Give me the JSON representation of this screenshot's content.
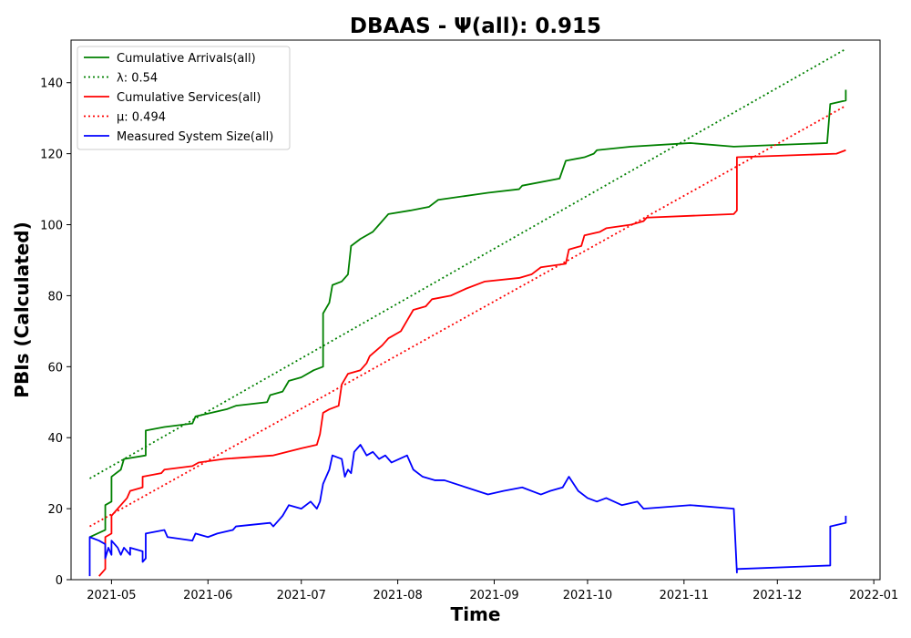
{
  "chart_data": {
    "type": "line",
    "title": "DBAAS -  Ψ(all): 0.915",
    "xlabel": "Time",
    "ylabel": "PBIs (Calculated)",
    "x_tick_labels": [
      "2021-05",
      "2021-06",
      "2021-07",
      "2021-08",
      "2021-09",
      "2021-10",
      "2021-11",
      "2021-12",
      "2022-01"
    ],
    "x_ticks": [
      "2021-05-01",
      "2021-06-01",
      "2021-07-01",
      "2021-08-01",
      "2021-09-01",
      "2021-10-01",
      "2021-11-01",
      "2021-12-01",
      "2022-01-01"
    ],
    "xlim": [
      "2021-04-18",
      "2022-01-03"
    ],
    "y_ticks": [
      0,
      20,
      40,
      60,
      80,
      100,
      120,
      140
    ],
    "ylim": [
      0,
      152
    ],
    "grid": false,
    "legend_position": "top-left",
    "series": [
      {
        "name": "Cumulative Arrivals(all)",
        "color": "#008000",
        "style": "solid",
        "points": [
          [
            "2021-04-24",
            12
          ],
          [
            "2021-04-29",
            14
          ],
          [
            "2021-04-29",
            21
          ],
          [
            "2021-05-01",
            22
          ],
          [
            "2021-05-01",
            29
          ],
          [
            "2021-05-04",
            31
          ],
          [
            "2021-05-05",
            34
          ],
          [
            "2021-05-12",
            35
          ],
          [
            "2021-05-12",
            42
          ],
          [
            "2021-05-18",
            43
          ],
          [
            "2021-05-27",
            44
          ],
          [
            "2021-05-28",
            46
          ],
          [
            "2021-06-07",
            48
          ],
          [
            "2021-06-10",
            49
          ],
          [
            "2021-06-20",
            50
          ],
          [
            "2021-06-21",
            52
          ],
          [
            "2021-06-25",
            53
          ],
          [
            "2021-06-27",
            56
          ],
          [
            "2021-07-01",
            57
          ],
          [
            "2021-07-05",
            59
          ],
          [
            "2021-07-08",
            60
          ],
          [
            "2021-07-08",
            75
          ],
          [
            "2021-07-10",
            78
          ],
          [
            "2021-07-11",
            83
          ],
          [
            "2021-07-14",
            84
          ],
          [
            "2021-07-16",
            86
          ],
          [
            "2021-07-17",
            94
          ],
          [
            "2021-07-20",
            96
          ],
          [
            "2021-07-24",
            98
          ],
          [
            "2021-07-26",
            100
          ],
          [
            "2021-07-29",
            103
          ],
          [
            "2021-08-05",
            104
          ],
          [
            "2021-08-11",
            105
          ],
          [
            "2021-08-14",
            107
          ],
          [
            "2021-08-30",
            109
          ],
          [
            "2021-09-09",
            110
          ],
          [
            "2021-09-10",
            111
          ],
          [
            "2021-09-22",
            113
          ],
          [
            "2021-09-24",
            118
          ],
          [
            "2021-09-30",
            119
          ],
          [
            "2021-10-03",
            120
          ],
          [
            "2021-10-04",
            121
          ],
          [
            "2021-10-15",
            122
          ],
          [
            "2021-11-03",
            123
          ],
          [
            "2021-11-17",
            122
          ],
          [
            "2021-12-02",
            122.5
          ],
          [
            "2021-12-17",
            123
          ],
          [
            "2021-12-18",
            134
          ],
          [
            "2021-12-23",
            135
          ],
          [
            "2021-12-23",
            138
          ]
        ]
      },
      {
        "name": "λ: 0.54",
        "color": "#008000",
        "style": "dotted",
        "points": [
          [
            "2021-04-24",
            28.5
          ],
          [
            "2021-12-23",
            149.5
          ]
        ]
      },
      {
        "name": "Cumulative Services(all)",
        "color": "#ff0000",
        "style": "solid",
        "points": [
          [
            "2021-04-27",
            1
          ],
          [
            "2021-04-28",
            2
          ],
          [
            "2021-04-29",
            3
          ],
          [
            "2021-04-29",
            12
          ],
          [
            "2021-05-01",
            13
          ],
          [
            "2021-05-01",
            18
          ],
          [
            "2021-05-04",
            21
          ],
          [
            "2021-05-06",
            23
          ],
          [
            "2021-05-07",
            25
          ],
          [
            "2021-05-11",
            26
          ],
          [
            "2021-05-11",
            29
          ],
          [
            "2021-05-17",
            30
          ],
          [
            "2021-05-18",
            31
          ],
          [
            "2021-05-27",
            32
          ],
          [
            "2021-05-29",
            33
          ],
          [
            "2021-06-06",
            34
          ],
          [
            "2021-06-22",
            35
          ],
          [
            "2021-07-01",
            37
          ],
          [
            "2021-07-06",
            38
          ],
          [
            "2021-07-07",
            41
          ],
          [
            "2021-07-08",
            47
          ],
          [
            "2021-07-10",
            48
          ],
          [
            "2021-07-13",
            49
          ],
          [
            "2021-07-14",
            55
          ],
          [
            "2021-07-16",
            58
          ],
          [
            "2021-07-20",
            59
          ],
          [
            "2021-07-22",
            61
          ],
          [
            "2021-07-23",
            63
          ],
          [
            "2021-07-27",
            66
          ],
          [
            "2021-07-29",
            68
          ],
          [
            "2021-08-02",
            70
          ],
          [
            "2021-08-04",
            73
          ],
          [
            "2021-08-06",
            76
          ],
          [
            "2021-08-10",
            77
          ],
          [
            "2021-08-12",
            79
          ],
          [
            "2021-08-18",
            80
          ],
          [
            "2021-08-23",
            82
          ],
          [
            "2021-08-29",
            84
          ],
          [
            "2021-09-09",
            85
          ],
          [
            "2021-09-13",
            86
          ],
          [
            "2021-09-16",
            88
          ],
          [
            "2021-09-24",
            89
          ],
          [
            "2021-09-25",
            93
          ],
          [
            "2021-09-29",
            94
          ],
          [
            "2021-09-30",
            97
          ],
          [
            "2021-10-05",
            98
          ],
          [
            "2021-10-07",
            99
          ],
          [
            "2021-10-15",
            100
          ],
          [
            "2021-10-19",
            101
          ],
          [
            "2021-10-20",
            102
          ],
          [
            "2021-11-17",
            103
          ],
          [
            "2021-11-18",
            104
          ],
          [
            "2021-11-18",
            119
          ],
          [
            "2021-12-20",
            120
          ],
          [
            "2021-12-23",
            121
          ]
        ]
      },
      {
        "name": "μ: 0.494",
        "color": "#ff0000",
        "style": "dotted",
        "points": [
          [
            "2021-04-24",
            15
          ],
          [
            "2021-12-23",
            133.5
          ]
        ]
      },
      {
        "name": "Measured System Size(all)",
        "color": "#0000ff",
        "style": "solid",
        "points": [
          [
            "2021-04-24",
            1
          ],
          [
            "2021-04-24",
            12
          ],
          [
            "2021-04-27",
            11
          ],
          [
            "2021-04-29",
            10
          ],
          [
            "2021-04-29",
            6
          ],
          [
            "2021-04-30",
            9
          ],
          [
            "2021-05-01",
            7
          ],
          [
            "2021-05-01",
            11
          ],
          [
            "2021-05-03",
            9
          ],
          [
            "2021-05-04",
            7
          ],
          [
            "2021-05-05",
            9
          ],
          [
            "2021-05-07",
            7
          ],
          [
            "2021-05-07",
            9
          ],
          [
            "2021-05-11",
            8
          ],
          [
            "2021-05-11",
            5
          ],
          [
            "2021-05-12",
            6
          ],
          [
            "2021-05-12",
            13
          ],
          [
            "2021-05-18",
            14
          ],
          [
            "2021-05-19",
            12
          ],
          [
            "2021-05-27",
            11
          ],
          [
            "2021-05-28",
            13
          ],
          [
            "2021-06-01",
            12
          ],
          [
            "2021-06-04",
            13
          ],
          [
            "2021-06-09",
            14
          ],
          [
            "2021-06-10",
            15
          ],
          [
            "2021-06-21",
            16
          ],
          [
            "2021-06-22",
            15
          ],
          [
            "2021-06-24",
            17
          ],
          [
            "2021-06-25",
            18
          ],
          [
            "2021-06-27",
            21
          ],
          [
            "2021-07-01",
            20
          ],
          [
            "2021-07-04",
            22
          ],
          [
            "2021-07-06",
            20
          ],
          [
            "2021-07-07",
            22
          ],
          [
            "2021-07-08",
            27
          ],
          [
            "2021-07-10",
            31
          ],
          [
            "2021-07-11",
            35
          ],
          [
            "2021-07-14",
            34
          ],
          [
            "2021-07-15",
            29
          ],
          [
            "2021-07-16",
            31
          ],
          [
            "2021-07-17",
            30
          ],
          [
            "2021-07-18",
            36
          ],
          [
            "2021-07-20",
            38
          ],
          [
            "2021-07-22",
            35
          ],
          [
            "2021-07-24",
            36
          ],
          [
            "2021-07-26",
            34
          ],
          [
            "2021-07-28",
            35
          ],
          [
            "2021-07-30",
            33
          ],
          [
            "2021-08-04",
            35
          ],
          [
            "2021-08-06",
            31
          ],
          [
            "2021-08-09",
            29
          ],
          [
            "2021-08-13",
            28
          ],
          [
            "2021-08-16",
            28
          ],
          [
            "2021-08-23",
            26
          ],
          [
            "2021-08-30",
            24
          ],
          [
            "2021-09-04",
            25
          ],
          [
            "2021-09-10",
            26
          ],
          [
            "2021-09-16",
            24
          ],
          [
            "2021-09-19",
            25
          ],
          [
            "2021-09-23",
            26
          ],
          [
            "2021-09-25",
            29
          ],
          [
            "2021-09-28",
            25
          ],
          [
            "2021-10-01",
            23
          ],
          [
            "2021-10-04",
            22
          ],
          [
            "2021-10-07",
            23
          ],
          [
            "2021-10-12",
            21
          ],
          [
            "2021-10-17",
            22
          ],
          [
            "2021-10-19",
            20
          ],
          [
            "2021-11-03",
            21
          ],
          [
            "2021-11-17",
            20
          ],
          [
            "2021-11-18",
            2
          ],
          [
            "2021-11-18",
            3
          ],
          [
            "2021-12-18",
            4
          ],
          [
            "2021-12-18",
            15
          ],
          [
            "2021-12-23",
            16
          ],
          [
            "2021-12-23",
            18
          ]
        ]
      }
    ]
  }
}
